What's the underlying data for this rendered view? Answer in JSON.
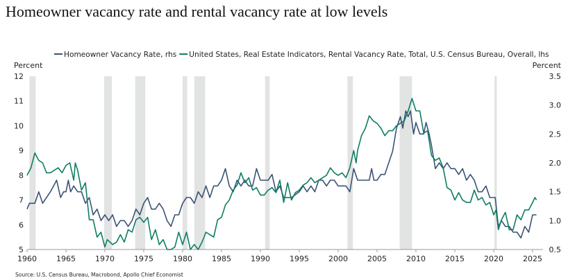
{
  "title": "Homeowner vacancy rate and rental vacancy rate at low levels",
  "source": "Source: U.S. Census Bureau, Macrobond, Apollo Chief Economist",
  "chart_data": {
    "type": "line",
    "title": "Homeowner vacancy rate and rental vacancy rate at low levels",
    "ylabel_left": "Percent",
    "ylabel_right": "Percent",
    "xlim": [
      1960,
      2026.5
    ],
    "ylim_left": [
      5,
      12
    ],
    "ylim_right": [
      0.5,
      3.5
    ],
    "x_ticks": [
      "1960",
      "1965",
      "1970",
      "1975",
      "1980",
      "1985",
      "1990",
      "1995",
      "2000",
      "2005",
      "2010",
      "2015",
      "2020",
      "2025"
    ],
    "y_ticks_left": [
      "5",
      "6",
      "7",
      "8",
      "9",
      "10",
      "11",
      "12"
    ],
    "y_ticks_right": [
      "0.5",
      "1.0",
      "1.5",
      "2.0",
      "2.5",
      "3.0",
      "3.5"
    ],
    "legend_placement": "top",
    "grid": false,
    "recessions": [
      [
        1960.3,
        1961.1
      ],
      [
        1969.9,
        1970.9
      ],
      [
        1973.9,
        1975.2
      ],
      [
        1980.0,
        1980.6
      ],
      [
        1981.5,
        1982.9
      ],
      [
        1990.6,
        1991.2
      ],
      [
        2001.2,
        2001.9
      ],
      [
        2007.9,
        2009.5
      ],
      [
        2020.1,
        2020.4
      ]
    ],
    "series": [
      {
        "name": "Homeowner Vacancy Rate, rhs",
        "axis": "right",
        "color": "#3a5275",
        "x": [
          1960,
          1960.3,
          1961,
          1961.5,
          1962,
          1962.5,
          1963,
          1963.8,
          1964.3,
          1964.7,
          1965,
          1965.3,
          1965.6,
          1966,
          1966.5,
          1967,
          1967.5,
          1968,
          1968.5,
          1969,
          1969.5,
          1970,
          1970.5,
          1971,
          1971.5,
          1972,
          1972.5,
          1973,
          1973.5,
          1974,
          1974.5,
          1975,
          1975.5,
          1976,
          1976.5,
          1977,
          1977.5,
          1978,
          1978.5,
          1979,
          1979.5,
          1980,
          1980.5,
          1981,
          1981.5,
          1982,
          1982.5,
          1983,
          1983.5,
          1984,
          1984.5,
          1985,
          1985.5,
          1986,
          1986.5,
          1987,
          1987.5,
          1988,
          1988.5,
          1989,
          1989.5,
          1990,
          1990.5,
          1991,
          1991.5,
          1992,
          1992.5,
          1993,
          1993.5,
          1994,
          1995,
          1995.5,
          1996,
          1996.5,
          1997,
          1997.5,
          1998,
          1998.5,
          1999,
          1999.5,
          2000,
          2000.5,
          2001,
          2001.5,
          2002,
          2002.5,
          2003,
          2004,
          2004.3,
          2004.6,
          2005,
          2005.5,
          2006,
          2007,
          2007.5,
          2008,
          2008.3,
          2008.7,
          2009,
          2009.3,
          2009.7,
          2010,
          2010.5,
          2011,
          2011.3,
          2011.7,
          2012,
          2012.5,
          2013,
          2013.5,
          2014,
          2014.5,
          2015,
          2015.5,
          2016,
          2016.5,
          2017,
          2017.5,
          2018,
          2018.5,
          2019,
          2019.5,
          2020,
          2020.2,
          2020.6,
          2021,
          2021.5,
          2022,
          2022.5,
          2023,
          2023.5,
          2024,
          2024.5,
          2025,
          2025.5
        ],
        "values": [
          1.2,
          1.3,
          1.3,
          1.5,
          1.3,
          1.4,
          1.5,
          1.7,
          1.4,
          1.5,
          1.5,
          1.7,
          1.5,
          1.6,
          1.5,
          1.5,
          1.3,
          1.4,
          1.1,
          1.2,
          1.0,
          1.1,
          1.0,
          1.1,
          0.9,
          1.0,
          1.0,
          0.9,
          1.0,
          1.2,
          1.1,
          1.3,
          1.4,
          1.2,
          1.2,
          1.3,
          1.2,
          1.0,
          0.9,
          1.1,
          1.1,
          1.3,
          1.4,
          1.4,
          1.3,
          1.5,
          1.4,
          1.6,
          1.4,
          1.6,
          1.6,
          1.7,
          1.9,
          1.6,
          1.5,
          1.7,
          1.6,
          1.7,
          1.6,
          1.6,
          1.9,
          1.7,
          1.7,
          1.7,
          1.8,
          1.5,
          1.6,
          1.4,
          1.4,
          1.4,
          1.5,
          1.6,
          1.5,
          1.6,
          1.5,
          1.7,
          1.7,
          1.6,
          1.7,
          1.7,
          1.6,
          1.6,
          1.6,
          1.5,
          1.9,
          1.7,
          1.7,
          1.7,
          1.9,
          1.7,
          1.7,
          1.8,
          1.8,
          2.2,
          2.6,
          2.8,
          2.6,
          2.9,
          2.8,
          2.9,
          2.5,
          2.7,
          2.5,
          2.5,
          2.7,
          2.5,
          2.3,
          1.9,
          2.0,
          1.9,
          2.0,
          1.9,
          1.9,
          1.8,
          1.9,
          1.7,
          1.8,
          1.7,
          1.5,
          1.5,
          1.6,
          1.4,
          1.4,
          1.4,
          0.9,
          1.0,
          0.9,
          0.9,
          0.8,
          0.8,
          0.7,
          0.9,
          0.8,
          1.1,
          1.1
        ]
      },
      {
        "name": "United States, Real Estate Indicators, Rental Vacancy Rate, Total, U.S. Census Bureau, Overall, lhs",
        "axis": "left",
        "color": "#0e7d62",
        "x": [
          1960,
          1960.5,
          1961,
          1961.5,
          1962,
          1962.5,
          1963,
          1963.5,
          1964,
          1964.5,
          1965,
          1965.5,
          1966,
          1966.2,
          1966.5,
          1967,
          1967.5,
          1968,
          1968.5,
          1969,
          1969.5,
          1970,
          1970.3,
          1971,
          1971.5,
          1972,
          1972.5,
          1973,
          1973.5,
          1974,
          1974.5,
          1975,
          1975.5,
          1976,
          1976.5,
          1977,
          1977.5,
          1978,
          1978.5,
          1979,
          1979.5,
          1980,
          1980.5,
          1981,
          1981.5,
          1982,
          1982.5,
          1983,
          1983.5,
          1984,
          1984.5,
          1985,
          1985.5,
          1986,
          1986.5,
          1987,
          1987.5,
          1988,
          1988.5,
          1989,
          1989.5,
          1990,
          1990.5,
          1991,
          1991.5,
          1992,
          1992.5,
          1993,
          1993.5,
          1994,
          1994.5,
          1995,
          1995.5,
          1996,
          1996.5,
          1997,
          1997.5,
          1998,
          1998.5,
          1999,
          1999.5,
          2000,
          2000.5,
          2001,
          2001.5,
          2002,
          2002.3,
          2002.5,
          2003,
          2003.5,
          2004,
          2004.5,
          2005,
          2005.5,
          2006,
          2006.5,
          2007,
          2007.5,
          2008,
          2008.5,
          2009,
          2009.5,
          2010,
          2010.5,
          2011,
          2011.5,
          2012,
          2012.5,
          2013,
          2013.5,
          2014,
          2014.5,
          2015,
          2015.5,
          2016,
          2016.5,
          2017,
          2017.5,
          2018,
          2018.5,
          2019,
          2019.5,
          2020,
          2020.3,
          2020.6,
          2021,
          2021.5,
          2022,
          2022.5,
          2023,
          2023.5,
          2024,
          2024.5,
          2025,
          2025.3,
          2025.5
        ],
        "values": [
          8.0,
          8.3,
          8.9,
          8.6,
          8.5,
          8.1,
          8.1,
          8.2,
          8.3,
          8.1,
          8.4,
          8.5,
          7.8,
          8.5,
          8.2,
          7.4,
          7.7,
          6.2,
          6.2,
          5.5,
          5.7,
          5.1,
          5.4,
          5.2,
          5.3,
          5.6,
          5.3,
          5.8,
          5.7,
          6.2,
          6.3,
          6.1,
          6.3,
          5.4,
          5.8,
          5.2,
          5.4,
          5.0,
          5.0,
          5.1,
          5.7,
          5.2,
          5.7,
          5.0,
          5.2,
          5.0,
          5.3,
          5.7,
          5.6,
          5.5,
          6.2,
          6.3,
          6.8,
          7.0,
          7.4,
          7.6,
          8.1,
          7.7,
          7.9,
          7.4,
          7.5,
          7.2,
          7.2,
          7.4,
          7.5,
          7.3,
          7.8,
          6.9,
          7.7,
          7.0,
          7.3,
          7.4,
          7.6,
          7.7,
          7.9,
          7.7,
          7.8,
          7.9,
          8.0,
          8.3,
          8.1,
          8.0,
          8.1,
          7.9,
          8.3,
          9.0,
          8.5,
          9.0,
          9.6,
          9.9,
          10.4,
          10.2,
          10.1,
          9.9,
          9.6,
          9.8,
          9.8,
          10.0,
          10.1,
          10.2,
          10.6,
          11.1,
          10.6,
          10.6,
          9.7,
          9.8,
          8.8,
          8.6,
          8.7,
          8.3,
          7.5,
          7.4,
          7.0,
          7.3,
          7.0,
          6.9,
          6.9,
          7.4,
          7.0,
          7.1,
          6.8,
          6.9,
          6.4,
          6.6,
          5.8,
          6.2,
          6.5,
          5.8,
          5.8,
          6.4,
          6.2,
          6.6,
          6.6,
          6.9,
          7.1,
          7.0
        ]
      }
    ]
  }
}
